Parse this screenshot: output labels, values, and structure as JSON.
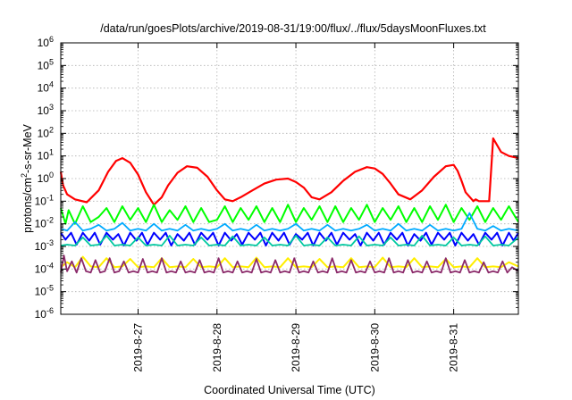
{
  "chart_data": {
    "type": "line",
    "title": "/data/run/goesPlots/archive/2019-08-31/19:00/flux/../flux/5daysMoonFluxes.txt",
    "xlabel": "Coordinated Universal Time (UTC)",
    "ylabel": {
      "base": "protons/cm",
      "sup": "2",
      "rest": "-s-sr-MeV"
    },
    "y_scale": "log",
    "ylim_exponent": [
      -6,
      6
    ],
    "y_ticks": [
      {
        "exp": -6,
        "base": "10",
        "sup": "-6"
      },
      {
        "exp": -5,
        "base": "10",
        "sup": "-5"
      },
      {
        "exp": -4,
        "base": "10",
        "sup": "-4"
      },
      {
        "exp": -3,
        "base": "10",
        "sup": "-3"
      },
      {
        "exp": -2,
        "base": "10",
        "sup": "-2"
      },
      {
        "exp": -1,
        "base": "10",
        "sup": "-1"
      },
      {
        "exp": 0,
        "base": "10",
        "sup": "0"
      },
      {
        "exp": 1,
        "base": "10",
        "sup": "1"
      },
      {
        "exp": 2,
        "base": "10",
        "sup": "2"
      },
      {
        "exp": 3,
        "base": "10",
        "sup": "3"
      },
      {
        "exp": 4,
        "base": "10",
        "sup": "4"
      },
      {
        "exp": 5,
        "base": "10",
        "sup": "5"
      },
      {
        "exp": 6,
        "base": "10",
        "sup": "6"
      }
    ],
    "xlim_days": [
      26.02,
      31.82
    ],
    "x_ticks": [
      {
        "day": 27,
        "label": "2019-8-27"
      },
      {
        "day": 28,
        "label": "2019-8-28"
      },
      {
        "day": 29,
        "label": "2019-8-29"
      },
      {
        "day": 30,
        "label": "2019-8-30"
      },
      {
        "day": 31,
        "label": "2019-8-31"
      }
    ],
    "grid": true,
    "series": [
      {
        "color": "#ff0000",
        "width": 2.2,
        "x": [
          26.02,
          26.05,
          26.1,
          26.2,
          26.35,
          26.5,
          26.62,
          26.72,
          26.8,
          26.9,
          27.0,
          27.1,
          27.2,
          27.3,
          27.38,
          27.5,
          27.62,
          27.75,
          27.88,
          28.0,
          28.1,
          28.2,
          28.3,
          28.45,
          28.6,
          28.75,
          28.9,
          29.0,
          29.1,
          29.2,
          29.3,
          29.45,
          29.6,
          29.75,
          29.9,
          30.0,
          30.1,
          30.2,
          30.3,
          30.45,
          30.6,
          30.75,
          30.9,
          31.0,
          31.05,
          31.1,
          31.15,
          31.25,
          31.28,
          31.32,
          31.38,
          31.45,
          31.5,
          31.6,
          31.7,
          31.82
        ],
        "y": [
          2.0,
          0.5,
          0.2,
          0.12,
          0.09,
          0.3,
          2.0,
          6.0,
          8.0,
          5.0,
          1.5,
          0.25,
          0.07,
          0.15,
          0.5,
          1.8,
          3.5,
          3.0,
          1.2,
          0.3,
          0.12,
          0.1,
          0.15,
          0.3,
          0.6,
          0.9,
          1.0,
          0.7,
          0.4,
          0.15,
          0.12,
          0.25,
          0.8,
          2.0,
          3.2,
          2.8,
          1.6,
          0.6,
          0.2,
          0.12,
          0.3,
          1.2,
          3.5,
          4.0,
          2.2,
          0.8,
          0.25,
          0.1,
          0.12,
          0.1,
          0.1,
          0.1,
          60,
          15,
          10,
          8
        ]
      },
      {
        "color": "#00ff00",
        "width": 2.0,
        "x": [
          26.02,
          26.08,
          26.12,
          26.2,
          26.3,
          26.4,
          26.5,
          26.6,
          26.7,
          26.8,
          26.9,
          27.0,
          27.1,
          27.2,
          27.3,
          27.4,
          27.5,
          27.6,
          27.7,
          27.8,
          27.9,
          28.0,
          28.1,
          28.2,
          28.3,
          28.4,
          28.5,
          28.6,
          28.7,
          28.8,
          28.9,
          29.0,
          29.1,
          29.2,
          29.3,
          29.4,
          29.5,
          29.6,
          29.7,
          29.8,
          29.9,
          30.0,
          30.1,
          30.2,
          30.3,
          30.4,
          30.5,
          30.6,
          30.7,
          30.8,
          30.9,
          31.0,
          31.1,
          31.2,
          31.3,
          31.4,
          31.5,
          31.6,
          31.7,
          31.82
        ],
        "y": [
          0.05,
          0.01,
          0.04,
          0.01,
          0.06,
          0.012,
          0.02,
          0.05,
          0.012,
          0.06,
          0.015,
          0.05,
          0.012,
          0.07,
          0.012,
          0.04,
          0.015,
          0.06,
          0.012,
          0.05,
          0.012,
          0.015,
          0.06,
          0.012,
          0.05,
          0.015,
          0.06,
          0.012,
          0.05,
          0.012,
          0.07,
          0.012,
          0.05,
          0.015,
          0.06,
          0.012,
          0.06,
          0.012,
          0.05,
          0.015,
          0.07,
          0.012,
          0.05,
          0.015,
          0.06,
          0.012,
          0.05,
          0.012,
          0.06,
          0.015,
          0.07,
          0.012,
          0.05,
          0.015,
          0.06,
          0.012,
          0.05,
          0.015,
          0.06,
          0.012
        ]
      },
      {
        "color": "#00aaff",
        "width": 1.8,
        "x": [
          26.02,
          26.1,
          26.2,
          26.3,
          26.4,
          26.5,
          26.6,
          26.7,
          26.8,
          26.9,
          27.0,
          27.1,
          27.2,
          27.3,
          27.4,
          27.5,
          27.6,
          27.7,
          27.8,
          27.9,
          28.0,
          28.1,
          28.2,
          28.3,
          28.4,
          28.5,
          28.6,
          28.7,
          28.8,
          28.9,
          29.0,
          29.1,
          29.2,
          29.3,
          29.4,
          29.5,
          29.6,
          29.7,
          29.8,
          29.9,
          30.0,
          30.1,
          30.2,
          30.3,
          30.4,
          30.5,
          30.6,
          30.7,
          30.8,
          30.9,
          31.0,
          31.1,
          31.2,
          31.3,
          31.4,
          31.5,
          31.6,
          31.7,
          31.82
        ],
        "y": [
          0.006,
          0.005,
          0.012,
          0.005,
          0.006,
          0.009,
          0.005,
          0.006,
          0.011,
          0.005,
          0.006,
          0.005,
          0.01,
          0.005,
          0.006,
          0.005,
          0.009,
          0.005,
          0.006,
          0.005,
          0.006,
          0.01,
          0.005,
          0.006,
          0.005,
          0.009,
          0.005,
          0.006,
          0.005,
          0.006,
          0.01,
          0.005,
          0.006,
          0.005,
          0.009,
          0.005,
          0.006,
          0.005,
          0.006,
          0.009,
          0.005,
          0.006,
          0.005,
          0.01,
          0.005,
          0.006,
          0.005,
          0.009,
          0.005,
          0.006,
          0.005,
          0.006,
          0.03,
          0.006,
          0.005,
          0.008,
          0.005,
          0.006,
          0.005
        ]
      },
      {
        "color": "#0000ff",
        "width": 2.0,
        "x": [
          26.02,
          26.08,
          26.15,
          26.22,
          26.3,
          26.38,
          26.45,
          26.52,
          26.6,
          26.68,
          26.75,
          26.82,
          26.9,
          26.98,
          27.05,
          27.12,
          27.2,
          27.28,
          27.35,
          27.42,
          27.5,
          27.58,
          27.65,
          27.72,
          27.8,
          27.88,
          27.95,
          28.02,
          28.1,
          28.18,
          28.25,
          28.32,
          28.4,
          28.48,
          28.55,
          28.62,
          28.7,
          28.78,
          28.85,
          28.92,
          29.0,
          29.08,
          29.15,
          29.22,
          29.3,
          29.38,
          29.45,
          29.52,
          29.6,
          29.68,
          29.75,
          29.82,
          29.9,
          29.98,
          30.05,
          30.12,
          30.2,
          30.28,
          30.35,
          30.42,
          30.5,
          30.58,
          30.65,
          30.72,
          30.8,
          30.88,
          30.95,
          31.02,
          31.1,
          31.18,
          31.25,
          31.32,
          31.4,
          31.48,
          31.55,
          31.62,
          31.7,
          31.76,
          31.82
        ],
        "y": [
          0.004,
          0.002,
          0.004,
          0.0012,
          0.004,
          0.0018,
          0.004,
          0.0012,
          0.004,
          0.002,
          0.0035,
          0.0011,
          0.004,
          0.0018,
          0.004,
          0.0012,
          0.004,
          0.002,
          0.004,
          0.0011,
          0.0035,
          0.0018,
          0.004,
          0.0012,
          0.004,
          0.002,
          0.004,
          0.0011,
          0.004,
          0.0018,
          0.0035,
          0.0012,
          0.004,
          0.002,
          0.004,
          0.0011,
          0.004,
          0.0018,
          0.004,
          0.0012,
          0.0035,
          0.002,
          0.004,
          0.0011,
          0.004,
          0.0018,
          0.004,
          0.0012,
          0.004,
          0.002,
          0.0035,
          0.0011,
          0.004,
          0.0018,
          0.004,
          0.0012,
          0.004,
          0.002,
          0.004,
          0.0011,
          0.0035,
          0.0018,
          0.004,
          0.0012,
          0.004,
          0.002,
          0.004,
          0.0011,
          0.004,
          0.0018,
          0.0035,
          0.0012,
          0.004,
          0.002,
          0.004,
          0.0011,
          0.004,
          0.0018,
          0.004
        ]
      },
      {
        "color": "#00c8a0",
        "width": 1.8,
        "x": [
          26.02,
          26.1,
          26.2,
          26.3,
          26.4,
          26.5,
          26.6,
          26.7,
          26.8,
          26.9,
          27.0,
          27.1,
          27.2,
          27.3,
          27.4,
          27.5,
          27.6,
          27.7,
          27.8,
          27.9,
          28.0,
          28.1,
          28.2,
          28.3,
          28.4,
          28.5,
          28.6,
          28.7,
          28.8,
          28.9,
          29.0,
          29.1,
          29.2,
          29.3,
          29.4,
          29.5,
          29.6,
          29.7,
          29.8,
          29.9,
          30.0,
          30.1,
          30.2,
          30.3,
          30.4,
          30.5,
          30.6,
          30.7,
          30.8,
          30.9,
          31.0,
          31.1,
          31.2,
          31.3,
          31.4,
          31.5,
          31.6,
          31.7,
          31.82
        ],
        "y": [
          0.0011,
          0.0012,
          0.0011,
          0.0025,
          0.0011,
          0.0012,
          0.003,
          0.0011,
          0.0012,
          0.0011,
          0.0025,
          0.0011,
          0.0012,
          0.0011,
          0.003,
          0.0011,
          0.0012,
          0.0011,
          0.0025,
          0.0011,
          0.0012,
          0.0011,
          0.0028,
          0.0011,
          0.0012,
          0.0011,
          0.0025,
          0.0011,
          0.0012,
          0.0011,
          0.003,
          0.0011,
          0.0012,
          0.0011,
          0.0025,
          0.0011,
          0.0012,
          0.0011,
          0.0028,
          0.0011,
          0.0012,
          0.0011,
          0.0025,
          0.0011,
          0.0012,
          0.0011,
          0.003,
          0.0011,
          0.0012,
          0.0011,
          0.0025,
          0.0011,
          0.0012,
          0.0011,
          0.0028,
          0.0011,
          0.0012,
          0.0011,
          0.0025
        ]
      },
      {
        "color": "#ffee00",
        "width": 2.0,
        "x": [
          26.02,
          26.1,
          26.2,
          26.3,
          26.4,
          26.5,
          26.6,
          26.7,
          26.8,
          26.9,
          27.0,
          27.1,
          27.2,
          27.3,
          27.4,
          27.5,
          27.6,
          27.7,
          27.8,
          27.9,
          28.0,
          28.1,
          28.2,
          28.3,
          28.4,
          28.5,
          28.6,
          28.7,
          28.8,
          28.9,
          29.0,
          29.1,
          29.2,
          29.3,
          29.4,
          29.5,
          29.6,
          29.7,
          29.8,
          29.9,
          30.0,
          30.1,
          30.2,
          30.3,
          30.4,
          30.5,
          30.6,
          30.7,
          30.8,
          30.9,
          31.0,
          31.1,
          31.2,
          31.3,
          31.4,
          31.5,
          31.6,
          31.7,
          31.82
        ],
        "y": [
          0.00012,
          0.0002,
          0.00012,
          0.00035,
          0.00013,
          0.00012,
          0.0003,
          0.00012,
          0.00013,
          0.00028,
          0.00012,
          0.00013,
          0.00012,
          0.0003,
          0.00012,
          0.00013,
          0.00012,
          0.00028,
          0.00012,
          0.00013,
          0.00012,
          0.0003,
          0.00012,
          0.00013,
          0.00012,
          0.00032,
          0.00012,
          0.00013,
          0.00012,
          0.0003,
          0.00012,
          0.00013,
          0.00012,
          0.00028,
          0.00012,
          0.00013,
          0.00012,
          0.0003,
          0.00012,
          0.00013,
          0.00012,
          0.00032,
          0.00012,
          0.00013,
          0.00012,
          0.0003,
          0.00012,
          0.00013,
          0.00012,
          0.00028,
          0.00012,
          0.00013,
          0.00012,
          0.0003,
          0.00012,
          0.00013,
          0.00012,
          0.0002,
          0.00013
        ]
      },
      {
        "color": "#8b2a6a",
        "width": 1.8,
        "x": [
          26.02,
          26.06,
          26.1,
          26.16,
          26.22,
          26.28,
          26.34,
          26.4,
          26.46,
          26.52,
          26.58,
          26.64,
          26.7,
          26.76,
          26.82,
          26.88,
          26.94,
          27.0,
          27.06,
          27.12,
          27.18,
          27.24,
          27.3,
          27.36,
          27.42,
          27.48,
          27.54,
          27.6,
          27.66,
          27.72,
          27.78,
          27.84,
          27.9,
          27.96,
          28.02,
          28.08,
          28.14,
          28.2,
          28.26,
          28.32,
          28.38,
          28.44,
          28.5,
          28.56,
          28.62,
          28.68,
          28.74,
          28.8,
          28.86,
          28.92,
          28.98,
          29.04,
          29.1,
          29.16,
          29.22,
          29.28,
          29.34,
          29.4,
          29.46,
          29.52,
          29.58,
          29.64,
          29.7,
          29.76,
          29.82,
          29.88,
          29.94,
          30.0,
          30.06,
          30.12,
          30.18,
          30.24,
          30.3,
          30.36,
          30.42,
          30.48,
          30.54,
          30.6,
          30.66,
          30.72,
          30.78,
          30.84,
          30.9,
          30.96,
          31.02,
          31.08,
          31.14,
          31.2,
          31.26,
          31.32,
          31.38,
          31.44,
          31.5,
          31.56,
          31.62,
          31.68,
          31.74,
          31.82
        ],
        "y": [
          7e-05,
          0.0004,
          8e-05,
          0.00022,
          7e-05,
          0.0003,
          8e-05,
          7e-05,
          0.00025,
          7e-05,
          8e-05,
          0.0003,
          7e-05,
          8e-05,
          0.00022,
          7e-05,
          8e-05,
          7e-05,
          0.00028,
          7e-05,
          8e-05,
          7e-05,
          0.0003,
          7e-05,
          8e-05,
          7e-05,
          0.00022,
          7e-05,
          8e-05,
          7e-05,
          0.00025,
          7e-05,
          8e-05,
          7e-05,
          0.0003,
          7e-05,
          8e-05,
          7e-05,
          0.00022,
          7e-05,
          8e-05,
          7e-05,
          0.00028,
          7e-05,
          8e-05,
          7e-05,
          0.00025,
          7e-05,
          8e-05,
          7e-05,
          0.0003,
          7e-05,
          8e-05,
          7e-05,
          0.00022,
          7e-05,
          8e-05,
          7e-05,
          0.0003,
          7e-05,
          8e-05,
          7e-05,
          0.00025,
          7e-05,
          8e-05,
          7e-05,
          0.00022,
          7e-05,
          8e-05,
          7e-05,
          0.0003,
          7e-05,
          8e-05,
          7e-05,
          0.00025,
          7e-05,
          8e-05,
          7e-05,
          0.00022,
          7e-05,
          8e-05,
          7e-05,
          0.0003,
          7e-05,
          8e-05,
          7e-05,
          0.00025,
          7e-05,
          8e-05,
          7e-05,
          0.0002,
          7e-05,
          8e-05,
          7e-05,
          0.00022,
          7e-05,
          0.00012,
          8e-05
        ]
      }
    ]
  }
}
